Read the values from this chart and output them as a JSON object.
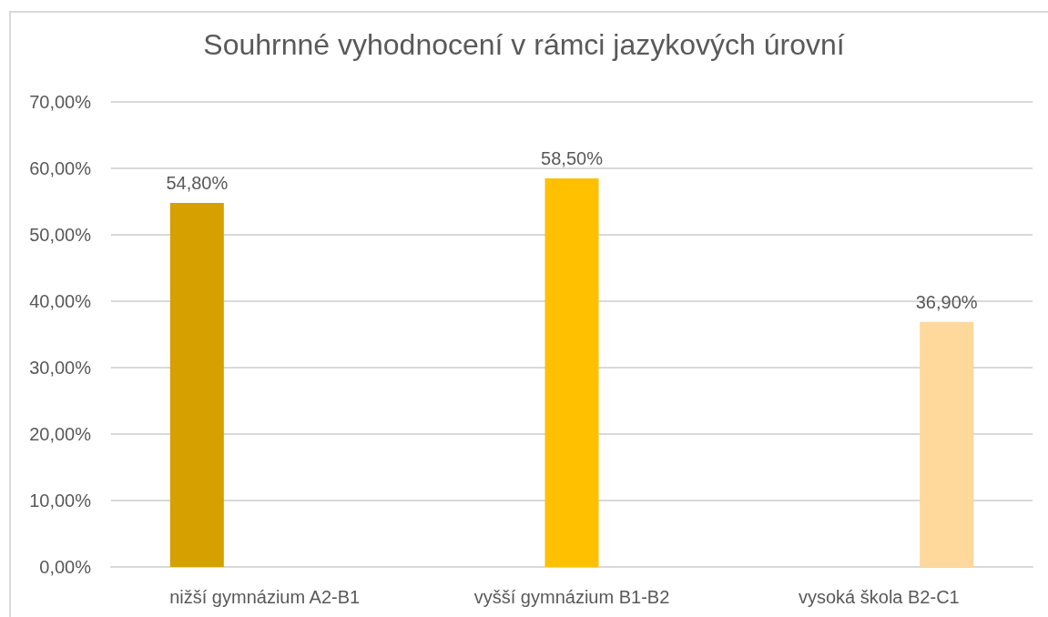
{
  "chart_data": {
    "type": "bar",
    "title": "Souhrnné vyhodnocení v rámci jazykových úrovní",
    "categories": [
      "nižší gymnázium A2-B1",
      "vyšší gymnázium B1-B2",
      "vysoká škola B2-C1"
    ],
    "series": [
      {
        "color": "#d5a000",
        "values": [
          54.8,
          null,
          null
        ],
        "value_labels": [
          "54,80%",
          null,
          null
        ]
      },
      {
        "color": "#ffc000",
        "values": [
          null,
          58.5,
          null
        ],
        "value_labels": [
          null,
          "58,50%",
          null
        ]
      },
      {
        "color": "#ffd89b",
        "values": [
          null,
          null,
          36.9
        ],
        "value_labels": [
          null,
          null,
          "36,90%"
        ]
      }
    ],
    "ylim": [
      0,
      70
    ],
    "yticks": [
      {
        "value": 0,
        "label": "0,00%"
      },
      {
        "value": 10,
        "label": "10,00%"
      },
      {
        "value": 20,
        "label": "20,00%"
      },
      {
        "value": 30,
        "label": "30,00%"
      },
      {
        "value": 40,
        "label": "40,00%"
      },
      {
        "value": 50,
        "label": "50,00%"
      },
      {
        "value": 60,
        "label": "60,00%"
      },
      {
        "value": 70,
        "label": "70,00%"
      }
    ],
    "grid": "y"
  }
}
